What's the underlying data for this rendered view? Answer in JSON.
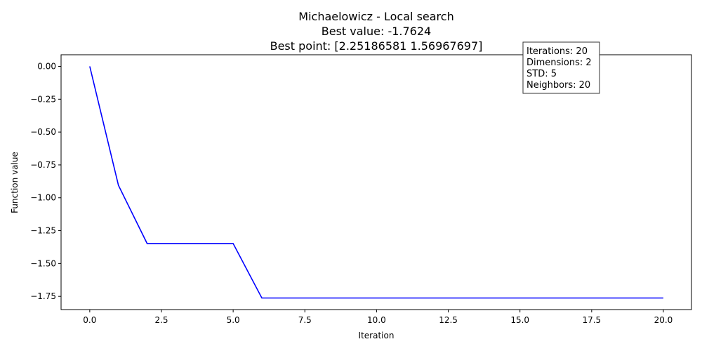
{
  "chart_data": {
    "type": "line",
    "title_lines": [
      "Michaelowicz - Local search",
      "Best value: -1.7624",
      "Best point: [2.25186581 1.56967697]"
    ],
    "xlabel": "Iteration",
    "ylabel": "Function value",
    "xlim": [
      -1,
      20.98
    ],
    "ylim": [
      -1.8505,
      0.0881
    ],
    "x_ticks": [
      0.0,
      2.5,
      5.0,
      7.5,
      10.0,
      12.5,
      15.0,
      17.5,
      20.0
    ],
    "x_tick_labels": [
      "0.0",
      "2.5",
      "5.0",
      "7.5",
      "10.0",
      "12.5",
      "15.0",
      "17.5",
      "20.0"
    ],
    "y_ticks": [
      0.0,
      -0.25,
      -0.5,
      -0.75,
      -1.0,
      -1.25,
      -1.5,
      -1.75
    ],
    "y_tick_labels": [
      "0.00",
      "−0.25",
      "−0.50",
      "−0.75",
      "−1.00",
      "−1.25",
      "−1.50",
      "−1.75"
    ],
    "grid": false,
    "series": [
      {
        "color": "#0000ff",
        "x": [
          0,
          1,
          2,
          3,
          4,
          5,
          6,
          7,
          8,
          9,
          10,
          11,
          12,
          13,
          14,
          15,
          16,
          17,
          18,
          19,
          20
        ],
        "y": [
          0.0,
          -0.905,
          -1.348,
          -1.348,
          -1.348,
          -1.348,
          -1.7624,
          -1.7624,
          -1.7624,
          -1.7624,
          -1.7624,
          -1.7624,
          -1.7624,
          -1.7624,
          -1.7624,
          -1.7624,
          -1.7624,
          -1.7624,
          -1.7624,
          -1.7624,
          -1.7624
        ]
      }
    ],
    "info_box": {
      "lines": [
        "Iterations: 20",
        "Dimensions: 2",
        "STD: 5",
        "Neighbors: 20"
      ]
    }
  }
}
